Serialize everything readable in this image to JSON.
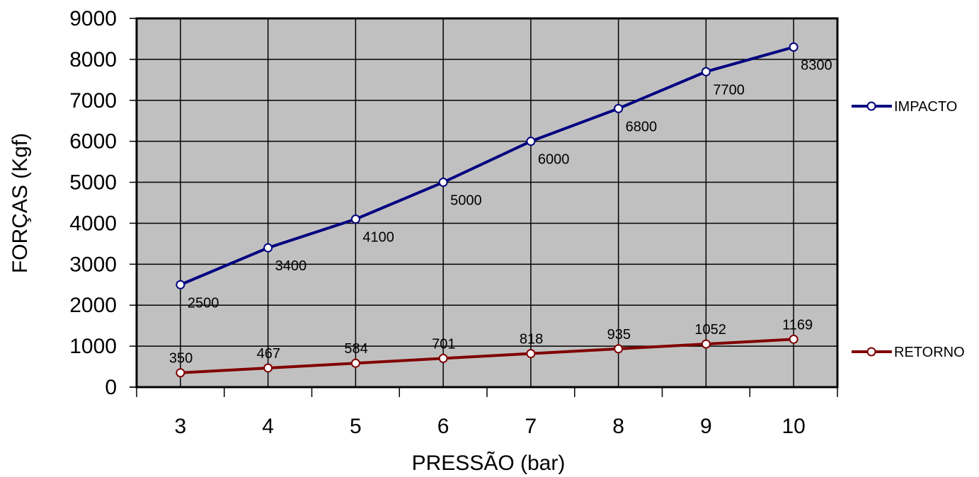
{
  "chart_data": {
    "type": "line",
    "xlabel": "PRESSÃO (bar)",
    "ylabel": "FORÇAS (Kgf)",
    "categories": [
      "3",
      "4",
      "5",
      "6",
      "7",
      "8",
      "9",
      "10"
    ],
    "ylim": [
      0,
      9000
    ],
    "yticks": [
      "0",
      "1000",
      "2000",
      "3000",
      "4000",
      "5000",
      "6000",
      "7000",
      "8000",
      "9000"
    ],
    "grid": true,
    "legend_position": "right",
    "series": [
      {
        "name": "IMPACTO",
        "color": "#000080",
        "values": [
          2500,
          3400,
          4100,
          5000,
          6000,
          6800,
          7700,
          8300
        ],
        "labels": [
          "2500",
          "3400",
          "4100",
          "5000",
          "6000",
          "6800",
          "7700",
          "8300"
        ]
      },
      {
        "name": "RETORNO",
        "color": "#800000",
        "values": [
          350,
          467,
          584,
          701,
          818,
          935,
          1052,
          1169
        ],
        "labels": [
          "350",
          "467",
          "584",
          "701",
          "818",
          "935",
          "1052",
          "1169"
        ]
      }
    ],
    "plot_background": "#c0c0c0"
  }
}
